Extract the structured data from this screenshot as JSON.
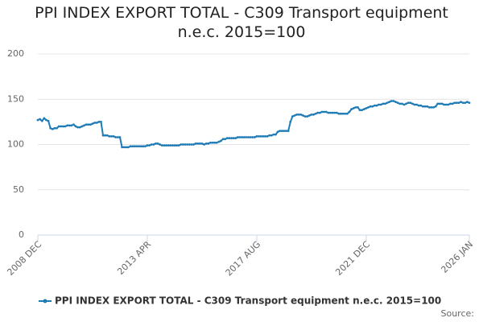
{
  "chart_data": {
    "type": "line",
    "title": "PPI INDEX EXPORT TOTAL - C309 Transport equipment n.e.c. 2015=100",
    "source": "Source:",
    "categories": [
      "2008 DEC",
      null,
      null,
      null,
      null,
      null,
      null,
      null,
      null,
      null,
      null,
      null,
      null,
      null,
      null,
      null,
      null,
      null,
      null,
      null,
      null,
      null,
      null,
      null,
      null,
      null,
      null,
      null,
      null,
      null,
      null,
      null,
      null,
      null,
      null,
      null,
      null,
      null,
      null,
      null,
      null,
      null,
      null,
      null,
      null,
      null,
      null,
      null,
      null,
      null,
      null,
      null,
      "2013 APR",
      null,
      null,
      null,
      null,
      null,
      null,
      null,
      null,
      null,
      null,
      null,
      null,
      null,
      null,
      null,
      null,
      null,
      null,
      null,
      null,
      null,
      null,
      null,
      null,
      null,
      null,
      null,
      null,
      null,
      null,
      null,
      null,
      null,
      null,
      null,
      null,
      null,
      null,
      null,
      null,
      null,
      null,
      null,
      null,
      null,
      null,
      null,
      null,
      null,
      null,
      null,
      "2017 AUG",
      null,
      null,
      null,
      null,
      null,
      null,
      null,
      null,
      null,
      null,
      null,
      null,
      null,
      null,
      null,
      null,
      null,
      null,
      null,
      null,
      null,
      null,
      null,
      null,
      null,
      null,
      null,
      null,
      null,
      null,
      null,
      null,
      null,
      null,
      null,
      null,
      null,
      null,
      null,
      null,
      null,
      null,
      null,
      null,
      null,
      null,
      null,
      null,
      null,
      null,
      null,
      "2021 DEC",
      null,
      null,
      null,
      null,
      null,
      null,
      null,
      null,
      null,
      null,
      null,
      null,
      null,
      null,
      null,
      null,
      null,
      null,
      null,
      null,
      null,
      null,
      null,
      null,
      null,
      null,
      null,
      null,
      null,
      null,
      null,
      null,
      null,
      null,
      null,
      null,
      null,
      null,
      null,
      null,
      null,
      null,
      null,
      null,
      null,
      null,
      null,
      null,
      "2026 JAN"
    ],
    "series": [
      {
        "name": "PPI INDEX EXPORT TOTAL - C309 Transport equipment n.e.c. 2015=100",
        "color": "#1f7bb6",
        "values": [
          127,
          128,
          126,
          129,
          127,
          126,
          118,
          117,
          118,
          118,
          120,
          120,
          120,
          120,
          121,
          121,
          121,
          122,
          120,
          119,
          119,
          120,
          121,
          122,
          122,
          122,
          123,
          124,
          124,
          125,
          125,
          110,
          110,
          110,
          109,
          109,
          109,
          108,
          108,
          108,
          97,
          97,
          97,
          97,
          98,
          98,
          98,
          98,
          98,
          98,
          98,
          98,
          99,
          99,
          100,
          100,
          101,
          101,
          100,
          99,
          99,
          99,
          99,
          99,
          99,
          99,
          99,
          99,
          100,
          100,
          100,
          100,
          100,
          100,
          100,
          101,
          101,
          101,
          101,
          100,
          101,
          101,
          102,
          102,
          102,
          102,
          103,
          104,
          106,
          106,
          107,
          107,
          107,
          107,
          107,
          108,
          108,
          108,
          108,
          108,
          108,
          108,
          108,
          108,
          109,
          109,
          109,
          109,
          109,
          109,
          110,
          110,
          111,
          111,
          114,
          115,
          115,
          115,
          115,
          115,
          125,
          131,
          132,
          133,
          133,
          133,
          132,
          131,
          131,
          132,
          133,
          133,
          134,
          135,
          135,
          136,
          136,
          136,
          135,
          135,
          135,
          135,
          135,
          134,
          134,
          134,
          134,
          134,
          136,
          139,
          140,
          141,
          141,
          138,
          138,
          139,
          140,
          141,
          142,
          142,
          143,
          143,
          144,
          144,
          145,
          145,
          146,
          147,
          148,
          148,
          147,
          146,
          145,
          145,
          144,
          145,
          146,
          146,
          145,
          144,
          144,
          143,
          143,
          142,
          142,
          142,
          141,
          141,
          141,
          142,
          145,
          145,
          145,
          144,
          144,
          144,
          145,
          145,
          146,
          146,
          146,
          147,
          146,
          146,
          147,
          146
        ]
      }
    ],
    "ylim": [
      0,
      200
    ],
    "yticks": [
      0,
      50,
      100,
      150,
      200
    ],
    "grid": true
  }
}
